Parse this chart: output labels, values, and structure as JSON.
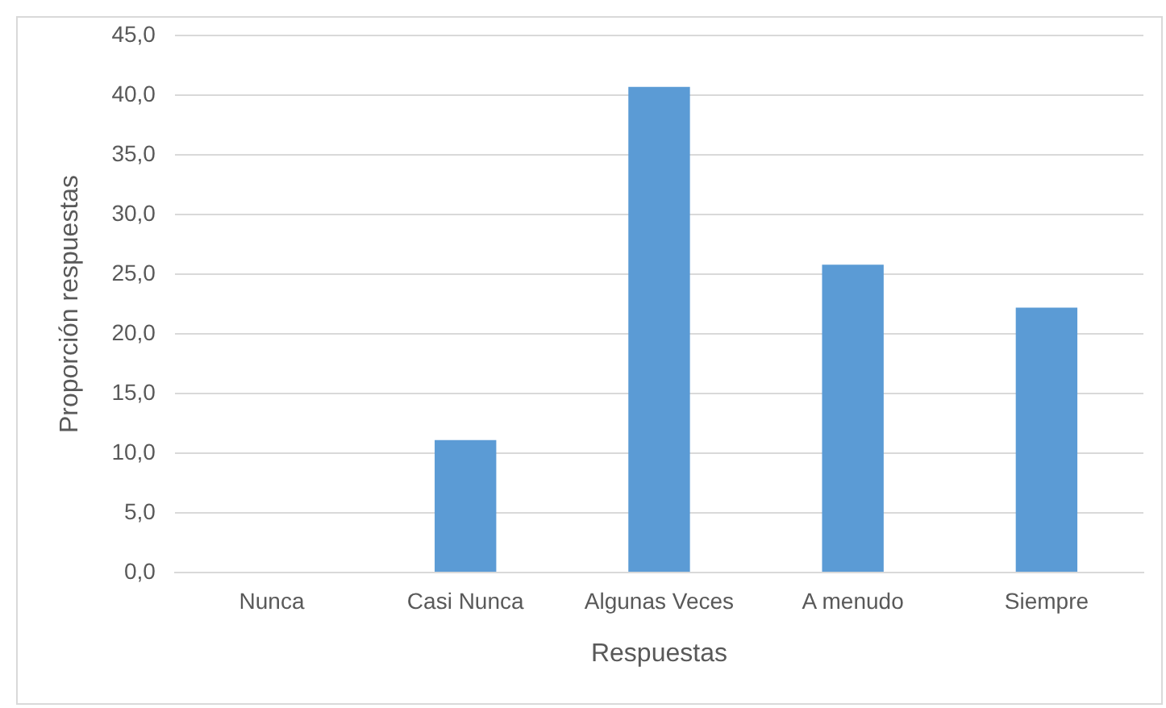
{
  "chart_data": {
    "type": "bar",
    "xlabel": "Respuestas",
    "ylabel": "Proporción respuestas",
    "categories": [
      "Nunca",
      "Casi Nunca",
      "Algunas Veces",
      "A menudo",
      "Siempre"
    ],
    "values": [
      0,
      11.1,
      40.7,
      25.8,
      22.2
    ],
    "color": "#5b9bd5",
    "ylim": [
      0,
      45
    ],
    "yticks": [
      {
        "value": 0,
        "label": "0,0"
      },
      {
        "value": 5,
        "label": "5,0"
      },
      {
        "value": 10,
        "label": "10,0"
      },
      {
        "value": 15,
        "label": "15,0"
      },
      {
        "value": 20,
        "label": "20,0"
      },
      {
        "value": 25,
        "label": "25,0"
      },
      {
        "value": 30,
        "label": "30,0"
      },
      {
        "value": 35,
        "label": "35,0"
      },
      {
        "value": 40,
        "label": "40,0"
      },
      {
        "value": 45,
        "label": "45,0"
      }
    ],
    "grid": "y",
    "legend": false
  }
}
